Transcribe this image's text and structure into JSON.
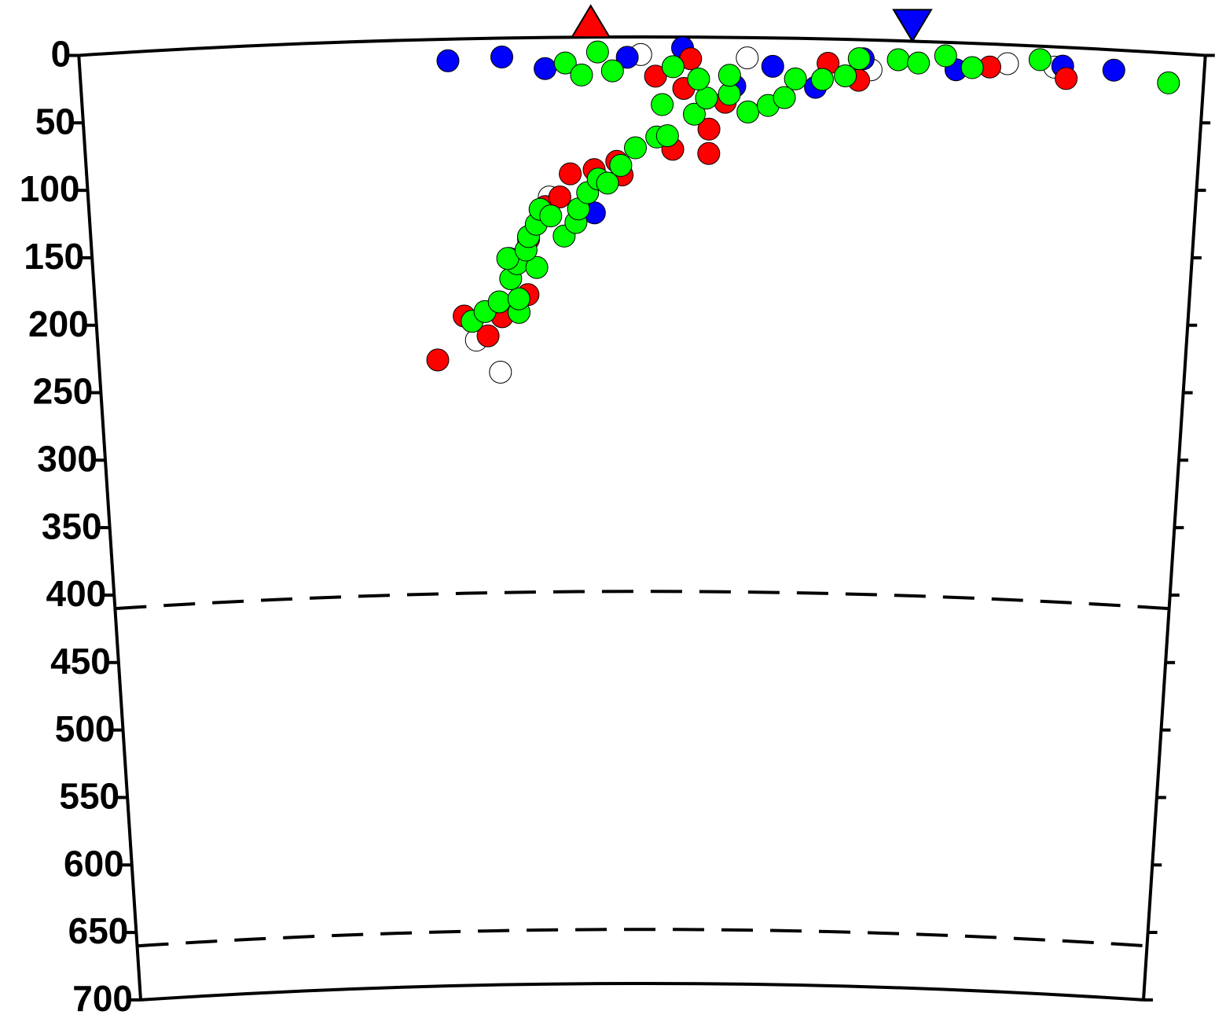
{
  "chart_data": {
    "type": "scatter",
    "xlim": [
      0,
      834
    ],
    "ylim": [
      0,
      700
    ],
    "yticks": [
      0,
      50,
      100,
      150,
      200,
      250,
      300,
      350,
      400,
      450,
      500,
      550,
      600,
      650,
      700
    ],
    "reference_depths": [
      410,
      660
    ],
    "series": [
      {
        "color": "#ffffff",
        "x": [
          308,
          290,
          347,
          416,
          495,
          688,
          723,
          587
        ],
        "values": [
          247,
          223,
          118,
          13,
          15,
          14,
          15,
          22
        ]
      },
      {
        "color": "#0000ff",
        "x": [
          273,
          313,
          345,
          406,
          447,
          486,
          514,
          546,
          581,
          650,
          729,
          767,
          381
        ],
        "values": [
          16,
          14,
          23,
          15,
          8,
          36,
          21,
          36,
          14,
          20,
          14,
          15,
          130
        ]
      },
      {
        "color": "#ff0000",
        "x": [
          260,
          281,
          299,
          310,
          330,
          316,
          331,
          344,
          355,
          363,
          381,
          402,
          398,
          427,
          440,
          448,
          453,
          467,
          467,
          479,
          555,
          578,
          675,
          732
        ],
        "values": [
          237,
          205,
          220,
          206,
          190,
          163,
          149,
          125,
          118,
          101,
          98,
          102,
          92,
          29,
          83,
          38,
          16,
          86,
          68,
          48,
          18,
          30,
          17,
          23
        ]
      },
      {
        "color": "#00ff00",
        "x": [
          287,
          297,
          308,
          323,
          323,
          317,
          322,
          337,
          315,
          329,
          331,
          337,
          340,
          348,
          358,
          367,
          369,
          376,
          384,
          391,
          401,
          412,
          428,
          436,
          432,
          456,
          465,
          482,
          496,
          511,
          523,
          531,
          551,
          568,
          578,
          607,
          622,
          642,
          662,
          712,
          808,
          360,
          372,
          384,
          395,
          440,
          459,
          482
        ],
        "values": [
          209,
          202,
          195,
          203,
          193,
          178,
          167,
          170,
          163,
          157,
          147,
          138,
          127,
          132,
          147,
          137,
          127,
          115,
          105,
          108,
          95,
          82,
          74,
          73,
          50,
          57,
          45,
          42,
          55,
          50,
          44,
          30,
          30,
          27,
          14,
          14,
          16,
          10,
          18,
          10,
          22,
          19,
          28,
          11,
          25,
          22,
          31,
          28
        ]
      }
    ],
    "markers": [
      {
        "x": 379,
        "y": 0,
        "shape": "triangle-up",
        "color": "#ff0000"
      },
      {
        "x": 617,
        "y": 0,
        "shape": "triangle-down",
        "color": "#0000ff"
      }
    ]
  }
}
